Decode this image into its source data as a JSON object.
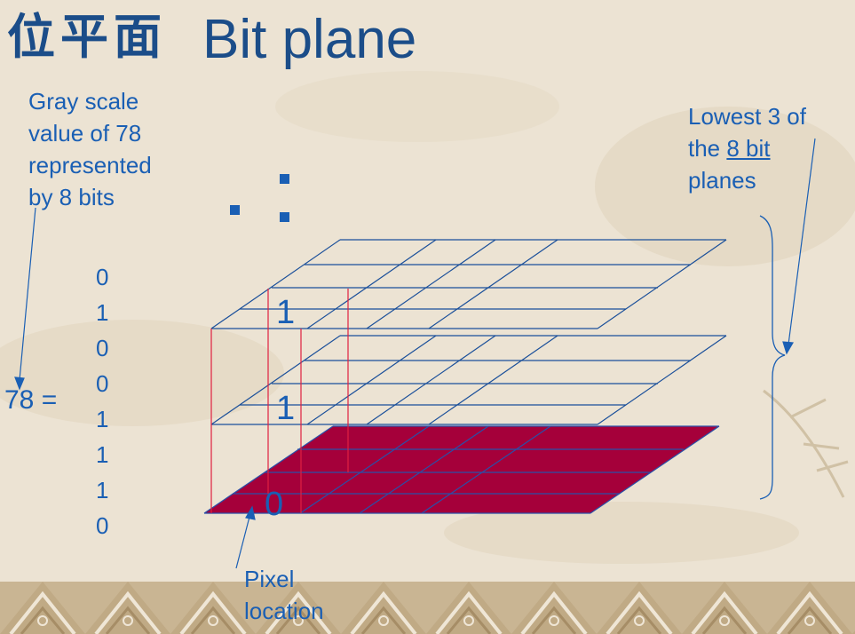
{
  "title": {
    "cjk": "位平面",
    "en": "Bit plane"
  },
  "annotation_gray": [
    "Gray scale",
    "value of 78",
    "represented",
    "by 8 bits"
  ],
  "annotation_lowest": {
    "line1": "Lowest 3 of",
    "line2_pre": "the ",
    "line2_link": "8 bit",
    "line3": "planes"
  },
  "equation_label": "78 =",
  "bits": [
    "0",
    "1",
    "0",
    "0",
    "1",
    "1",
    "1",
    "0"
  ],
  "plane_bits": {
    "top": "1",
    "middle": "1",
    "bottom": "0"
  },
  "pixel_label": [
    "Pixel",
    "location"
  ],
  "colors": {
    "text_blue": "#1a5fb4",
    "title_blue": "#1b4d89",
    "bottom_plane_fill": "#a5003a",
    "grid_line": "#1a4f9a",
    "pixel_column": "#e02040"
  }
}
